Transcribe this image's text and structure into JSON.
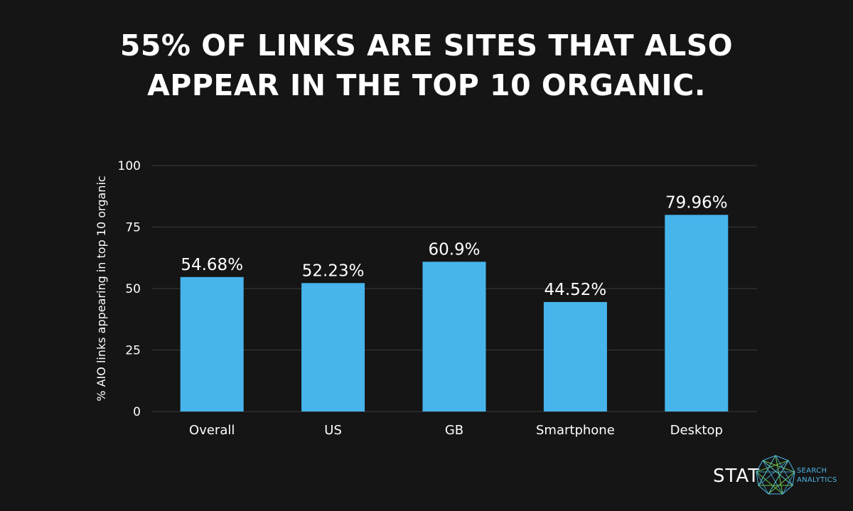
{
  "title": {
    "line1": "55% OF LINKS ARE SITES THAT ALSO",
    "line2": "APPEAR IN THE TOP 10 ORGANIC."
  },
  "chart_data": {
    "type": "bar",
    "categories": [
      "Overall",
      "US",
      "GB",
      "Smartphone",
      "Desktop"
    ],
    "values": [
      54.68,
      52.23,
      60.9,
      44.52,
      79.96
    ],
    "data_labels": [
      "54.68%",
      "52.23%",
      "60.9%",
      "44.52%",
      "79.96%"
    ],
    "ylabel": "% AIO links appearing in top 10 organic",
    "xlabel": "",
    "ylim": [
      0,
      100
    ],
    "yticks": [
      0,
      25,
      50,
      75,
      100
    ],
    "grid": true,
    "bar_color": "#47b5ec",
    "grid_color": "#3a3a3a"
  },
  "logo": {
    "word": "STAT",
    "sub_line1": "SEARCH",
    "sub_line2": "ANALYTICS"
  },
  "colors": {
    "background": "#151515",
    "text": "#ffffff",
    "accent": "#47b5ec"
  }
}
